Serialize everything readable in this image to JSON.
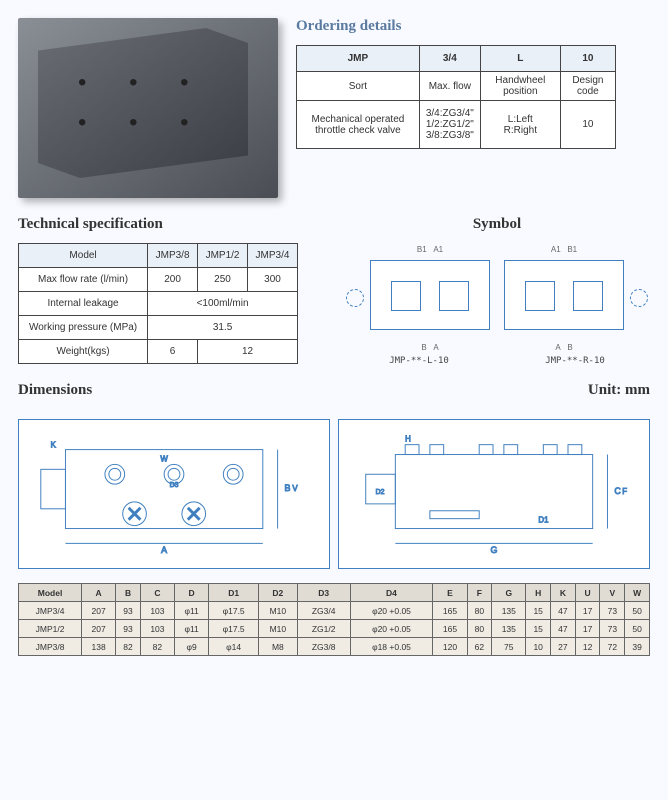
{
  "ordering": {
    "title": "Ordering details",
    "header": [
      "JMP",
      "3/4",
      "L",
      "10"
    ],
    "sub": [
      "Sort",
      "Max. flow",
      "Handwheel position",
      "Design code"
    ],
    "row": [
      "Mechanical operated throttle check valve",
      "3/4:ZG3/4\"\n1/2:ZG1/2\"\n3/8:ZG3/8\"",
      "L:Left\nR:Right",
      "10"
    ]
  },
  "tech": {
    "title": "Technical specification",
    "columns": [
      "Model",
      "JMP3/8",
      "JMP1/2",
      "JMP3/4"
    ],
    "rows": [
      {
        "label": "Max flow rate (l/min)",
        "v": [
          "200",
          "250",
          "300"
        ]
      },
      {
        "label": "Internal leakage",
        "span": "<100ml/min"
      },
      {
        "label": "Working pressure (MPa)",
        "span": "31.5"
      },
      {
        "label": "Weight(kgs)",
        "v": [
          "6",
          "",
          "12"
        ]
      }
    ]
  },
  "symbol": {
    "title": "Symbol",
    "labels_top": [
      "B1",
      "A1"
    ],
    "labels_bot": [
      "B",
      "A"
    ],
    "left_caption": "JMP-**-L-10",
    "right_caption": "JMP-**-R-10"
  },
  "dimensions": {
    "title": "Dimensions",
    "unit": "Unit: mm",
    "columns": [
      "Model",
      "A",
      "B",
      "C",
      "D",
      "D1",
      "D2",
      "D3",
      "D4",
      "E",
      "F",
      "G",
      "H",
      "K",
      "U",
      "V",
      "W"
    ],
    "rows": [
      [
        "JMP3/4",
        "207",
        "93",
        "103",
        "φ11",
        "φ17.5",
        "M10",
        "ZG3/4",
        "φ20 +0.05",
        "165",
        "80",
        "135",
        "15",
        "47",
        "17",
        "73",
        "50"
      ],
      [
        "JMP1/2",
        "207",
        "93",
        "103",
        "φ11",
        "φ17.5",
        "M10",
        "ZG1/2",
        "φ20 +0.05",
        "165",
        "80",
        "135",
        "15",
        "47",
        "17",
        "73",
        "50"
      ],
      [
        "JMP3/8",
        "138",
        "82",
        "82",
        "φ9",
        "φ14",
        "M8",
        "ZG3/8",
        "φ18 +0.05",
        "120",
        "62",
        "75",
        "10",
        "27",
        "12",
        "72",
        "39"
      ]
    ]
  }
}
